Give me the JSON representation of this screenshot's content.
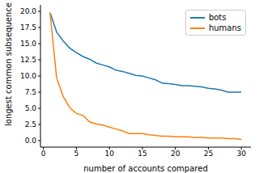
{
  "chart_data": {
    "type": "line",
    "x_label": "number of accounts compared",
    "y_label": "longest common subsequence",
    "x": [
      1,
      2,
      3,
      4,
      5,
      6,
      7,
      8,
      9,
      10,
      11,
      12,
      13,
      14,
      15,
      16,
      17,
      18,
      19,
      20,
      21,
      22,
      23,
      24,
      25,
      26,
      27,
      28,
      29,
      30
    ],
    "series": [
      {
        "name": "bots",
        "color": "#1f77b4",
        "values": [
          19.8,
          16.8,
          15.4,
          14.3,
          13.6,
          13.0,
          12.6,
          12.0,
          11.7,
          11.4,
          10.9,
          10.7,
          10.4,
          10.1,
          10.0,
          9.7,
          9.4,
          8.9,
          8.8,
          8.7,
          8.5,
          8.5,
          8.4,
          8.3,
          8.1,
          8.0,
          7.8,
          7.5,
          7.5,
          7.5
        ]
      },
      {
        "name": "humans",
        "color": "#ff7f0e",
        "values": [
          19.8,
          9.7,
          6.8,
          5.1,
          4.2,
          3.9,
          2.9,
          2.6,
          2.4,
          2.1,
          1.8,
          1.5,
          1.1,
          1.1,
          1.1,
          0.9,
          0.8,
          0.7,
          0.7,
          0.6,
          0.6,
          0.6,
          0.5,
          0.5,
          0.4,
          0.4,
          0.4,
          0.3,
          0.3,
          0.2
        ]
      }
    ],
    "xlim": [
      -0.45,
      31.45
    ],
    "xticks": [
      0,
      5,
      10,
      15,
      20,
      25,
      30
    ],
    "ylim": [
      -1,
      21
    ],
    "yticks": [
      {
        "value": 0,
        "label": "0.0"
      },
      {
        "value": 2.5,
        "label": "2.5"
      },
      {
        "value": 5,
        "label": "5.0"
      },
      {
        "value": 7.5,
        "label": "7.5"
      },
      {
        "value": 10,
        "label": "10.0"
      },
      {
        "value": 12.5,
        "label": "12.5"
      },
      {
        "value": 15,
        "label": "15.0"
      },
      {
        "value": 17.5,
        "label": "17.5"
      },
      {
        "value": 20,
        "label": "20.0"
      }
    ],
    "legend": "upper right"
  }
}
